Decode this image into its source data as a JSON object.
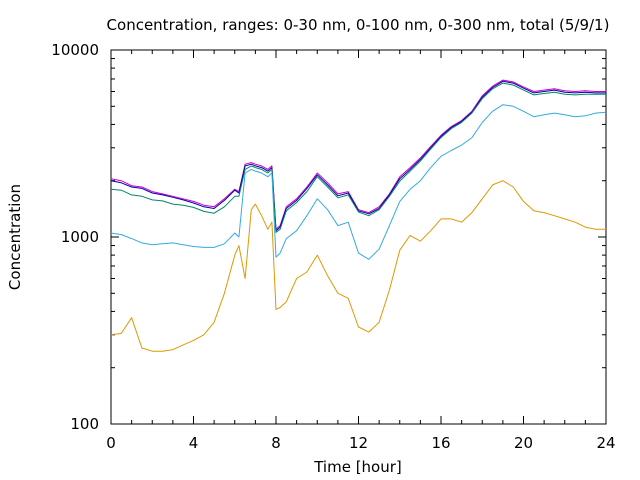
{
  "chart_data": {
    "type": "line",
    "title": "Concentration, ranges: 0-30 nm, 0-100 nm, 0-300 nm, total (5/9/1)",
    "xlabel": "Time [hour]",
    "ylabel": "Concentration",
    "xlim": [
      0,
      24
    ],
    "ylim": [
      100,
      10000
    ],
    "yscale": "log",
    "grid": false,
    "legend": "none",
    "xticks": [
      "0",
      "4",
      "8",
      "12",
      "16",
      "20",
      "24"
    ],
    "yticks": [
      "100",
      "1000",
      "10000"
    ],
    "x": [
      0,
      0.5,
      1,
      1.5,
      2,
      2.5,
      3,
      3.5,
      4,
      4.5,
      5,
      5.5,
      6,
      6.2,
      6.5,
      6.8,
      7,
      7.3,
      7.6,
      7.8,
      8,
      8.2,
      8.5,
      9,
      9.5,
      10,
      10.5,
      11,
      11.5,
      12,
      12.5,
      13,
      13.5,
      14,
      14.5,
      15,
      15.5,
      16,
      16.5,
      17,
      17.5,
      18,
      18.5,
      19,
      19.5,
      20,
      20.5,
      21,
      21.5,
      22,
      22.5,
      23,
      23.5,
      24
    ],
    "series": [
      {
        "color": "#cc00cc",
        "values": [
          2050,
          2000,
          1880,
          1850,
          1750,
          1700,
          1650,
          1600,
          1550,
          1480,
          1450,
          1600,
          1800,
          1750,
          2450,
          2500,
          2450,
          2400,
          2300,
          2400,
          1100,
          1150,
          1450,
          1600,
          1850,
          2200,
          1950,
          1700,
          1750,
          1400,
          1350,
          1450,
          1700,
          2100,
          2350,
          2650,
          3050,
          3500,
          3900,
          4200,
          4700,
          5700,
          6400,
          6900,
          6750,
          6350,
          6000,
          6100,
          6200,
          6050,
          6000,
          6050,
          6000,
          6000
        ]
      },
      {
        "color": "#0000aa",
        "values": [
          2000,
          1950,
          1850,
          1820,
          1720,
          1680,
          1630,
          1580,
          1520,
          1450,
          1420,
          1570,
          1780,
          1720,
          2400,
          2450,
          2400,
          2350,
          2250,
          2350,
          1080,
          1130,
          1420,
          1570,
          1820,
          2150,
          1900,
          1660,
          1720,
          1380,
          1330,
          1420,
          1680,
          2050,
          2300,
          2600,
          3000,
          3450,
          3850,
          4150,
          4650,
          5600,
          6300,
          6800,
          6650,
          6250,
          5900,
          6000,
          6100,
          5950,
          5900,
          5950,
          5900,
          5900
        ]
      },
      {
        "color": "#008866",
        "values": [
          1800,
          1780,
          1680,
          1650,
          1580,
          1560,
          1500,
          1480,
          1440,
          1370,
          1340,
          1450,
          1650,
          1650,
          2300,
          2400,
          2350,
          2300,
          2200,
          2300,
          1060,
          1100,
          1380,
          1530,
          1750,
          2100,
          1850,
          1620,
          1680,
          1360,
          1300,
          1400,
          1650,
          1990,
          2250,
          2550,
          2950,
          3400,
          3800,
          4100,
          4600,
          5500,
          6200,
          6650,
          6500,
          6100,
          5750,
          5850,
          5950,
          5800,
          5750,
          5800,
          5800,
          5800
        ]
      },
      {
        "color": "#33aadd",
        "values": [
          1050,
          1030,
          980,
          930,
          910,
          920,
          930,
          910,
          890,
          880,
          880,
          920,
          1050,
          1000,
          2200,
          2300,
          2250,
          2200,
          2100,
          2200,
          780,
          820,
          980,
          1080,
          1300,
          1600,
          1400,
          1150,
          1200,
          820,
          760,
          860,
          1150,
          1550,
          1800,
          2000,
          2350,
          2700,
          2900,
          3100,
          3400,
          4100,
          4700,
          5100,
          5000,
          4700,
          4400,
          4500,
          4600,
          4500,
          4400,
          4450,
          4600,
          4650
        ]
      },
      {
        "color": "#dd9900",
        "values": [
          300,
          305,
          370,
          255,
          245,
          245,
          250,
          265,
          280,
          300,
          350,
          500,
          800,
          900,
          600,
          1400,
          1500,
          1300,
          1100,
          1200,
          410,
          420,
          450,
          600,
          650,
          800,
          620,
          500,
          470,
          330,
          310,
          350,
          520,
          850,
          1020,
          950,
          1080,
          1250,
          1250,
          1200,
          1350,
          1600,
          1900,
          2000,
          1850,
          1550,
          1380,
          1350,
          1300,
          1250,
          1200,
          1130,
          1100,
          1100
        ]
      }
    ]
  }
}
